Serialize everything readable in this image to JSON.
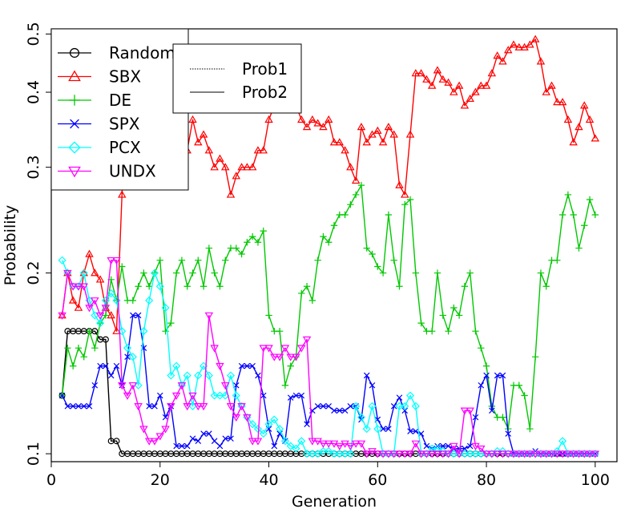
{
  "chart_data": {
    "type": "line",
    "title": "",
    "xlabel": "Generation",
    "ylabel": "Probability",
    "xlim": [
      0,
      104
    ],
    "ylim": [
      0.097,
      0.51
    ],
    "y_scale": "log",
    "grid": false,
    "x_ticks": [
      0,
      20,
      40,
      60,
      80,
      100
    ],
    "x_tick_labels": [
      "0",
      "20",
      "40",
      "60",
      "80",
      "100"
    ],
    "y_ticks": [
      0.1,
      0.2,
      0.3,
      0.4,
      0.5
    ],
    "y_tick_labels": [
      "0.1",
      "0.2",
      "0.3",
      "0.4",
      "0.5"
    ],
    "legend": {
      "placement": "top-left",
      "entries": [
        "Random",
        "SBX",
        "DE",
        "SPX",
        "PCX",
        "UNDX"
      ]
    },
    "legend2": {
      "placement": "top-center",
      "entries": [
        "Prob1",
        "Prob2"
      ]
    },
    "x": [
      2,
      3,
      4,
      5,
      6,
      7,
      8,
      9,
      10,
      11,
      12,
      13,
      14,
      15,
      16,
      17,
      18,
      19,
      20,
      21,
      22,
      23,
      24,
      25,
      26,
      27,
      28,
      29,
      30,
      31,
      32,
      33,
      34,
      35,
      36,
      37,
      38,
      39,
      40,
      41,
      42,
      43,
      44,
      45,
      46,
      47,
      48,
      49,
      50,
      51,
      52,
      53,
      54,
      55,
      56,
      57,
      58,
      59,
      60,
      61,
      62,
      63,
      64,
      65,
      66,
      67,
      68,
      69,
      70,
      71,
      72,
      73,
      74,
      75,
      76,
      77,
      78,
      79,
      80,
      81,
      82,
      83,
      84,
      85,
      86,
      87,
      88,
      89,
      90,
      91,
      92,
      93,
      94,
      95,
      96,
      97,
      98,
      99,
      100
    ],
    "series": [
      {
        "name": "Random",
        "color": "#000000",
        "marker": "circle",
        "values": [
          0.125,
          0.16,
          0.16,
          0.16,
          0.16,
          0.16,
          0.16,
          0.155,
          0.155,
          0.105,
          0.105,
          0.1,
          0.1,
          0.1,
          0.1,
          0.1,
          0.1,
          0.1,
          0.1,
          0.1,
          0.1,
          0.1,
          0.1,
          0.1,
          0.1,
          0.1,
          0.1,
          0.1,
          0.1,
          0.1,
          0.1,
          0.1,
          0.1,
          0.1,
          0.1,
          0.1,
          0.1,
          0.1,
          0.1,
          0.1,
          0.1,
          0.1,
          0.1,
          0.1,
          0.1,
          0.1,
          0.1,
          0.1,
          0.1,
          0.1,
          0.1,
          0.1,
          0.1,
          0.1,
          0.1,
          0.1,
          0.1,
          0.1,
          0.1,
          0.1,
          0.1,
          0.1,
          0.1,
          0.1,
          0.1,
          0.1,
          0.1,
          0.1,
          0.1,
          0.1,
          0.1,
          0.1,
          0.1,
          0.1,
          0.1,
          0.1,
          0.1,
          0.1,
          0.1,
          0.1,
          0.1,
          0.1,
          0.1,
          0.1,
          0.1,
          0.1,
          0.1,
          0.1,
          0.1,
          0.1,
          0.1,
          0.1,
          0.1,
          0.1,
          0.1,
          0.1,
          0.1,
          0.1,
          0.1
        ]
      },
      {
        "name": "SBX",
        "color": "#ff0000",
        "marker": "triangle-up",
        "values": [
          0.17,
          0.2,
          0.18,
          0.175,
          0.2,
          0.215,
          0.2,
          0.195,
          0.175,
          0.17,
          0.16,
          0.27,
          0.44,
          0.42,
          0.4,
          0.37,
          0.39,
          0.35,
          0.36,
          0.34,
          0.32,
          0.34,
          0.31,
          0.32,
          0.36,
          0.33,
          0.34,
          0.32,
          0.3,
          0.31,
          0.3,
          0.27,
          0.29,
          0.3,
          0.3,
          0.3,
          0.32,
          0.32,
          0.36,
          0.38,
          0.42,
          0.39,
          0.44,
          0.38,
          0.36,
          0.35,
          0.36,
          0.355,
          0.35,
          0.36,
          0.33,
          0.33,
          0.32,
          0.3,
          0.285,
          0.35,
          0.33,
          0.34,
          0.345,
          0.33,
          0.35,
          0.34,
          0.28,
          0.27,
          0.34,
          0.43,
          0.43,
          0.42,
          0.41,
          0.435,
          0.42,
          0.415,
          0.4,
          0.41,
          0.38,
          0.39,
          0.4,
          0.41,
          0.41,
          0.43,
          0.46,
          0.45,
          0.47,
          0.48,
          0.475,
          0.475,
          0.48,
          0.49,
          0.45,
          0.4,
          0.41,
          0.385,
          0.385,
          0.36,
          0.33,
          0.35,
          0.38,
          0.36,
          0.335
        ]
      },
      {
        "name": "DE",
        "color": "#00c800",
        "marker": "plus",
        "values": [
          0.125,
          0.15,
          0.14,
          0.15,
          0.145,
          0.16,
          0.15,
          0.165,
          0.17,
          0.195,
          0.18,
          0.205,
          0.18,
          0.18,
          0.19,
          0.2,
          0.19,
          0.2,
          0.21,
          0.16,
          0.165,
          0.2,
          0.21,
          0.19,
          0.2,
          0.21,
          0.19,
          0.22,
          0.2,
          0.19,
          0.21,
          0.22,
          0.22,
          0.215,
          0.225,
          0.23,
          0.225,
          0.235,
          0.17,
          0.16,
          0.16,
          0.13,
          0.14,
          0.145,
          0.185,
          0.19,
          0.18,
          0.21,
          0.23,
          0.225,
          0.24,
          0.25,
          0.25,
          0.26,
          0.27,
          0.28,
          0.22,
          0.215,
          0.205,
          0.2,
          0.25,
          0.21,
          0.19,
          0.26,
          0.265,
          0.2,
          0.165,
          0.16,
          0.16,
          0.2,
          0.17,
          0.16,
          0.175,
          0.17,
          0.19,
          0.2,
          0.16,
          0.15,
          0.14,
          0.12,
          0.115,
          0.115,
          0.11,
          0.13,
          0.13,
          0.125,
          0.11,
          0.145,
          0.2,
          0.19,
          0.21,
          0.21,
          0.25,
          0.27,
          0.25,
          0.22,
          0.24,
          0.265,
          0.25
        ]
      },
      {
        "name": "SPX",
        "color": "#0000ff",
        "marker": "cross",
        "values": [
          0.125,
          0.12,
          0.12,
          0.12,
          0.12,
          0.12,
          0.13,
          0.14,
          0.14,
          0.135,
          0.14,
          0.13,
          0.145,
          0.17,
          0.17,
          0.15,
          0.12,
          0.12,
          0.125,
          0.115,
          0.12,
          0.103,
          0.103,
          0.103,
          0.106,
          0.105,
          0.108,
          0.108,
          0.105,
          0.103,
          0.106,
          0.106,
          0.13,
          0.14,
          0.14,
          0.14,
          0.135,
          0.125,
          0.11,
          0.103,
          0.108,
          0.105,
          0.124,
          0.125,
          0.125,
          0.112,
          0.118,
          0.12,
          0.12,
          0.12,
          0.118,
          0.118,
          0.118,
          0.12,
          0.12,
          0.114,
          0.135,
          0.13,
          0.114,
          0.11,
          0.11,
          0.12,
          0.124,
          0.118,
          0.109,
          0.109,
          0.108,
          0.103,
          0.102,
          0.103,
          0.103,
          0.103,
          0.102,
          0.102,
          0.102,
          0.103,
          0.115,
          0.13,
          0.135,
          0.118,
          0.135,
          0.135,
          0.108,
          0.1,
          0.1,
          0.1,
          0.1,
          0.101,
          0.1,
          0.1,
          0.1,
          0.1,
          0.1,
          0.1,
          0.1,
          0.1,
          0.1,
          0.1,
          0.1
        ]
      },
      {
        "name": "PCX",
        "color": "#00ffff",
        "marker": "diamond",
        "values": [
          0.21,
          0.2,
          0.19,
          0.19,
          0.2,
          0.18,
          0.17,
          0.165,
          0.18,
          0.185,
          0.18,
          0.16,
          0.15,
          0.145,
          0.13,
          0.16,
          0.18,
          0.2,
          0.19,
          0.175,
          0.135,
          0.14,
          0.13,
          0.135,
          0.12,
          0.135,
          0.14,
          0.135,
          0.125,
          0.125,
          0.125,
          0.135,
          0.125,
          0.12,
          0.115,
          0.112,
          0.11,
          0.108,
          0.112,
          0.114,
          0.11,
          0.105,
          0.103,
          0.102,
          0.105,
          0.1,
          0.1,
          0.1,
          0.101,
          0.101,
          0.1,
          0.1,
          0.1,
          0.1,
          0.12,
          0.115,
          0.11,
          0.12,
          0.11,
          0.1,
          0.1,
          0.1,
          0.12,
          0.12,
          0.125,
          0.12,
          0.1,
          0.1,
          0.102,
          0.102,
          0.101,
          0.1,
          0.1,
          0.1,
          0.1,
          0.1,
          0.1,
          0.1,
          0.1,
          0.1,
          0.101,
          0.101,
          0.1,
          0.1,
          0.1,
          0.1,
          0.1,
          0.1,
          0.1,
          0.1,
          0.1,
          0.101,
          0.105,
          0.1,
          0.1,
          0.1,
          0.1,
          0.1,
          0.1
        ]
      },
      {
        "name": "UNDX",
        "color": "#ff00ff",
        "marker": "triangle-down",
        "values": [
          0.17,
          0.2,
          0.19,
          0.19,
          0.19,
          0.175,
          0.18,
          0.17,
          0.175,
          0.21,
          0.21,
          0.13,
          0.125,
          0.13,
          0.12,
          0.11,
          0.105,
          0.105,
          0.107,
          0.11,
          0.12,
          0.125,
          0.13,
          0.12,
          0.125,
          0.12,
          0.12,
          0.17,
          0.15,
          0.14,
          0.13,
          0.12,
          0.115,
          0.12,
          0.115,
          0.105,
          0.105,
          0.15,
          0.15,
          0.145,
          0.145,
          0.15,
          0.145,
          0.145,
          0.15,
          0.155,
          0.105,
          0.105,
          0.104,
          0.104,
          0.104,
          0.103,
          0.104,
          0.103,
          0.104,
          0.104,
          0.1,
          0.101,
          0.1,
          0.1,
          0.1,
          0.1,
          0.1,
          0.1,
          0.1,
          0.104,
          0.1,
          0.1,
          0.1,
          0.1,
          0.1,
          0.1,
          0.103,
          0.1,
          0.118,
          0.118,
          0.103,
          0.102,
          0.1,
          0.1,
          0.1,
          0.1,
          0.1,
          0.1,
          0.1,
          0.1,
          0.1,
          0.1,
          0.1,
          0.1,
          0.1,
          0.1,
          0.1,
          0.1,
          0.1,
          0.1,
          0.1,
          0.1,
          0.1
        ]
      }
    ]
  }
}
